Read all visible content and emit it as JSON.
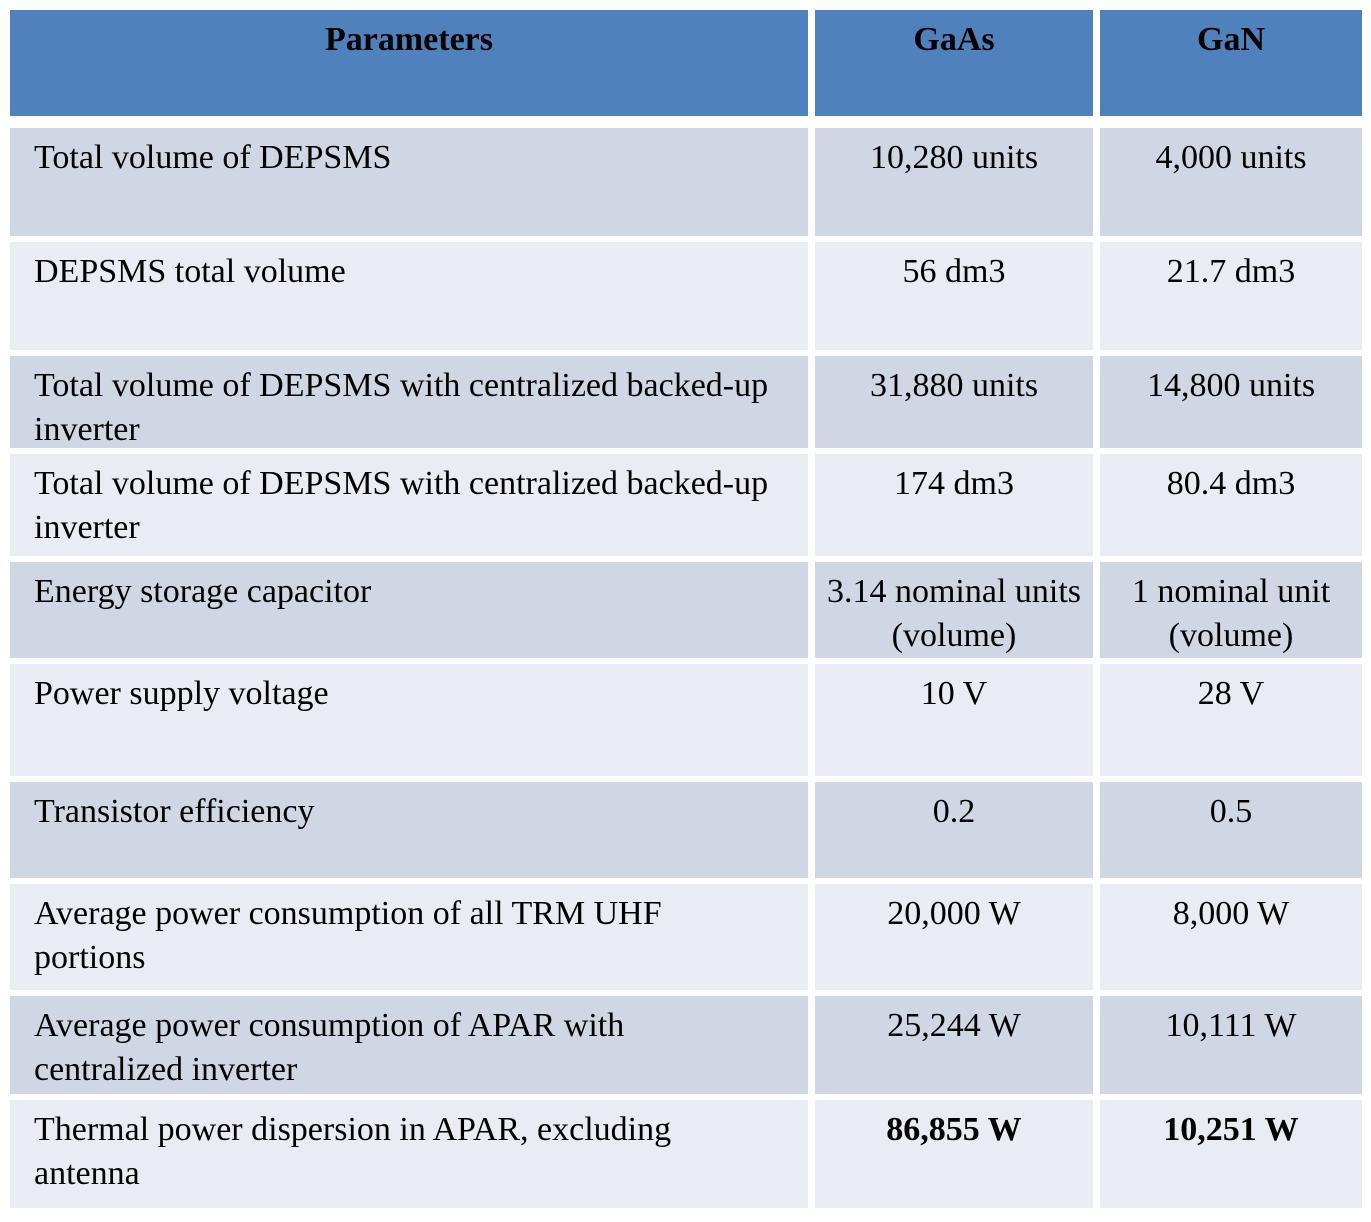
{
  "table": {
    "headers": [
      "Parameters",
      "GaAs",
      "GaN"
    ],
    "rows": [
      {
        "param": "Total volume of DEPSMS",
        "gaas": "10,280 units",
        "gan": "4,000 units",
        "bold": false
      },
      {
        "param": "DEPSMS total volume",
        "gaas": "56 dm3",
        "gan": "21.7 dm3",
        "bold": false
      },
      {
        "param": "Total volume of DEPSMS with centralized backed-up inverter",
        "gaas": "31,880 units",
        "gan": "14,800 units",
        "bold": false
      },
      {
        "param": "Total volume of DEPSMS with centralized backed-up inverter",
        "gaas": "174 dm3",
        "gan": "80.4 dm3",
        "bold": false
      },
      {
        "param": "Energy storage capacitor",
        "gaas": "3.14 nominal units\n(volume)",
        "gan": "1 nominal unit\n(volume)",
        "bold": false
      },
      {
        "param": "Power supply voltage",
        "gaas": "10 V",
        "gan": "28 V",
        "bold": false
      },
      {
        "param": "Transistor efficiency",
        "gaas": "0.2",
        "gan": "0.5",
        "bold": false
      },
      {
        "param": "Average power consumption of all TRM UHF portions",
        "gaas": "20,000 W",
        "gan": "8,000 W",
        "bold": false
      },
      {
        "param": "Average power consumption of APAR with centralized inverter",
        "gaas": "25,244 W",
        "gan": "10,111 W",
        "bold": false
      },
      {
        "param": "Thermal power dispersion in APAR, excluding antenna",
        "gaas": "86,855 W",
        "gan": "10,251 W",
        "bold": true
      }
    ],
    "colors": {
      "header_bg": "#4f81bd",
      "band_dark": "#d0d7e4",
      "band_light": "#e9ecf3",
      "gap": "#ffffff",
      "text": "#000000"
    }
  }
}
